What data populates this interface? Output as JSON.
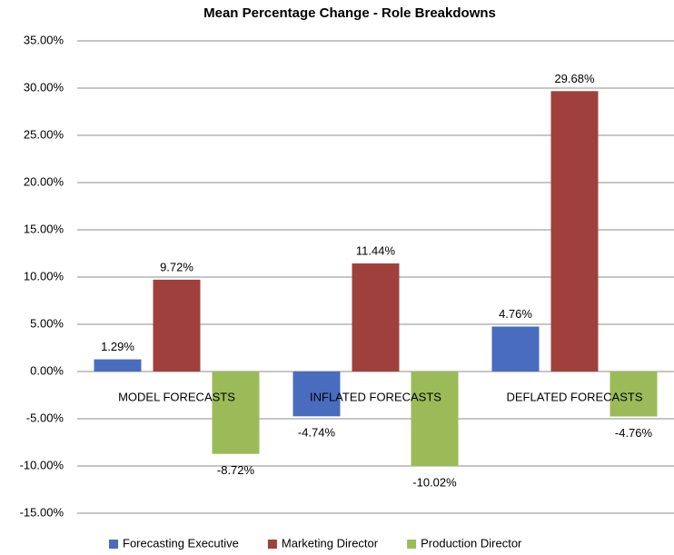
{
  "chart_data": {
    "type": "bar",
    "title": "Mean Percentage Change - Role Breakdowns",
    "categories": [
      "MODEL FORECASTS",
      "INFLATED FORECASTS",
      "DEFLATED FORECASTS"
    ],
    "series": [
      {
        "name": "Forecasting Executive",
        "color": "#4a6cbf",
        "values": [
          1.29,
          -4.74,
          4.76
        ],
        "value_labels": [
          "1.29%",
          "-4.74%",
          "4.76%"
        ]
      },
      {
        "name": "Marketing Director",
        "color": "#a0403c",
        "values": [
          9.72,
          11.44,
          29.68
        ],
        "value_labels": [
          "9.72%",
          "11.44%",
          "29.68%"
        ]
      },
      {
        "name": "Production Director",
        "color": "#9bbb59",
        "values": [
          -8.72,
          -10.02,
          -4.76
        ],
        "value_labels": [
          "-8.72%",
          "-10.02%",
          "-4.76%"
        ]
      }
    ],
    "ylim": [
      -15,
      35
    ],
    "yticks": [
      {
        "value": -15,
        "label": "-15.00%"
      },
      {
        "value": -10,
        "label": "-10.00%"
      },
      {
        "value": -5,
        "label": "-5.00%"
      },
      {
        "value": 0,
        "label": "0.00%"
      },
      {
        "value": 5,
        "label": "5.00%"
      },
      {
        "value": 10,
        "label": "10.00%"
      },
      {
        "value": 15,
        "label": "15.00%"
      },
      {
        "value": 20,
        "label": "20.00%"
      },
      {
        "value": 25,
        "label": "25.00%"
      },
      {
        "value": 30,
        "label": "30.00%"
      },
      {
        "value": 35,
        "label": "35.00%"
      }
    ],
    "grid": true,
    "legend": "bottom"
  }
}
